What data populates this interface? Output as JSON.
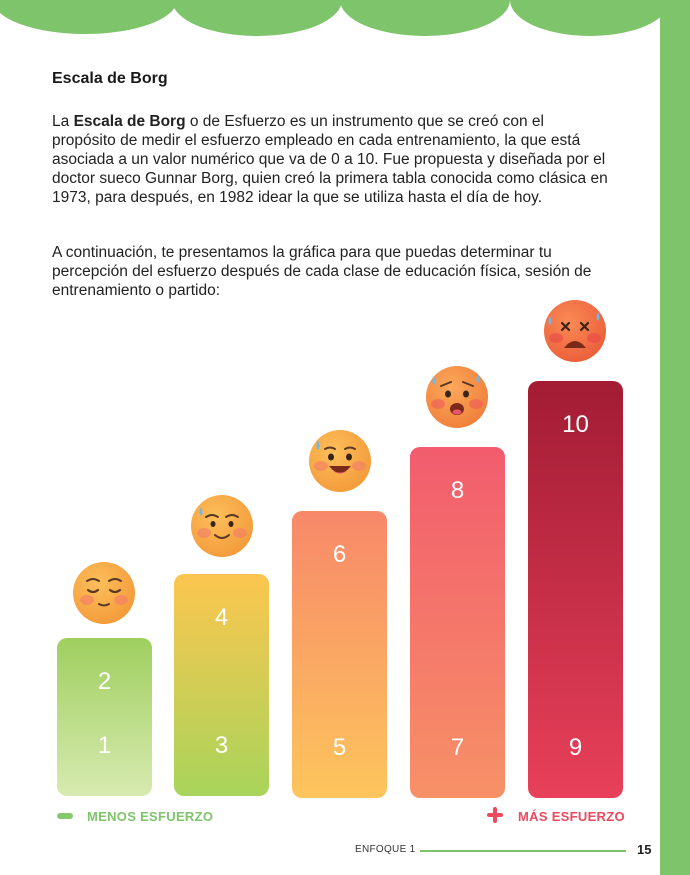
{
  "heading": "Escala de Borg",
  "paragraph1": {
    "before": "La ",
    "bold": "Escala de Borg",
    "after": " o de Esfuerzo es un instrumento que se creó con el propósito de medir el esfuerzo empleado en cada entrenamiento, la que está asociada a un valor numérico que va de 0 a 10. Fue propuesta y diseñada por el doctor sueco Gunnar Borg, quien creó la primera tabla conocida como clásica en 1973, para después, en 1982 idear la que se utiliza hasta el día de hoy."
  },
  "paragraph2": "A continuación, te presentamos la gráfica para que puedas determinar tu percepción del esfuerzo después de cada clase de educación física, sesión de entrenamiento o partido:",
  "chart_data": {
    "type": "bar",
    "bars": [
      {
        "low": "1",
        "high": "2",
        "face": "relaxed-face-icon"
      },
      {
        "low": "3",
        "high": "4",
        "face": "smiling-sweat-face-icon"
      },
      {
        "low": "5",
        "high": "6",
        "face": "grinning-sweat-face-icon"
      },
      {
        "low": "7",
        "high": "8",
        "face": "anxious-sweat-face-icon"
      },
      {
        "low": "9",
        "high": "10",
        "face": "exhausted-face-icon"
      }
    ],
    "legend_left": "MENOS ESFUERZO",
    "legend_right": "MÁS ESFUERZO",
    "colors": [
      "#b8de84",
      "#d6cf57",
      "#fba761",
      "#f4736a",
      "#c52e47"
    ]
  },
  "footer": {
    "section": "ENFOQUE 1",
    "page": "15"
  }
}
